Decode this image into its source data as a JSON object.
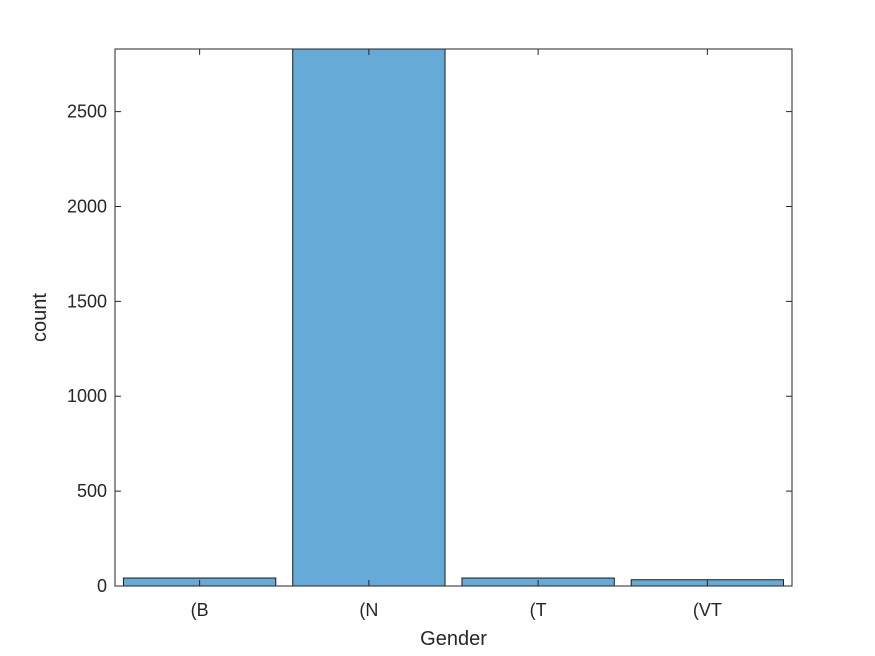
{
  "chart_data": {
    "type": "bar",
    "categories": [
      "(B",
      "(N",
      "(T",
      "(VT"
    ],
    "values": [
      42,
      2830,
      42,
      33
    ],
    "xlabel": "Gender",
    "ylabel": "count",
    "ylim": [
      0,
      2830
    ],
    "yticks": [
      0,
      500,
      1000,
      1500,
      2000,
      2500
    ],
    "grid": false,
    "legend": "none"
  },
  "colors": {
    "bar_fill": "#66aad8",
    "bar_edge": "#1a1a1a",
    "axis": "#262626",
    "text": "#262626"
  }
}
